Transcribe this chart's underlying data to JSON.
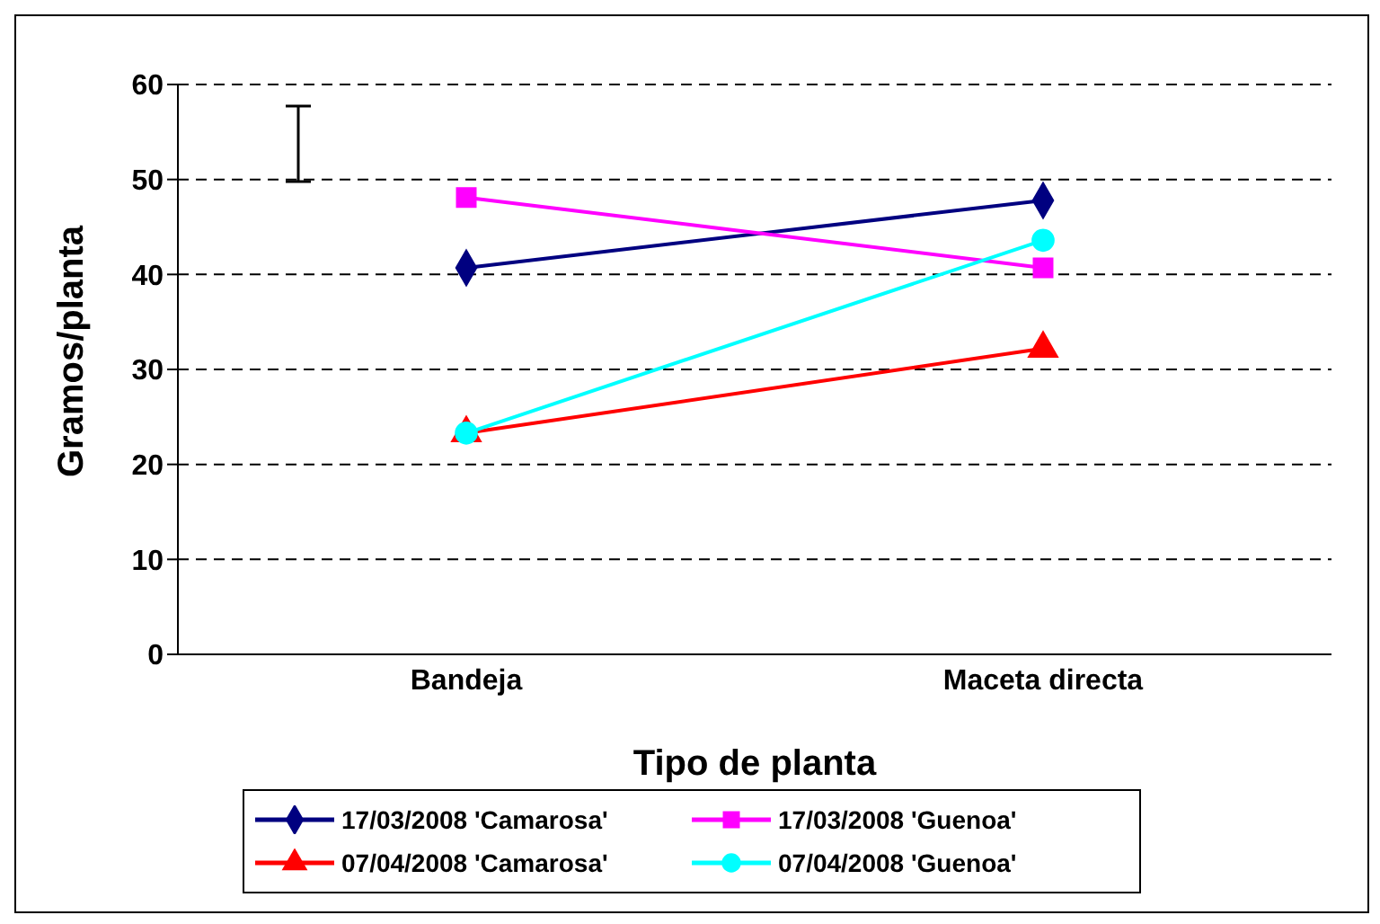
{
  "chart_data": {
    "type": "line",
    "xlabel": "Tipo de planta",
    "ylabel": "Gramos/planta",
    "categories": [
      "Bandeja",
      "Maceta directa"
    ],
    "series": [
      {
        "name": "17/03/2008 'Camarosa'",
        "color": "#000080",
        "marker": "diamond",
        "values": [
          40.7,
          47.8
        ]
      },
      {
        "name": "17/03/2008 'Guenoa'",
        "color": "#ff00ff",
        "marker": "square",
        "values": [
          48.1,
          40.7
        ]
      },
      {
        "name": "07/04/2008 'Camarosa'",
        "color": "#ff0000",
        "marker": "triangle",
        "values": [
          23.3,
          32.2
        ]
      },
      {
        "name": "07/04/2008 'Guenoa'",
        "color": "#00ffff",
        "marker": "circle",
        "values": [
          23.3,
          43.6
        ]
      }
    ],
    "ylim": [
      0,
      60
    ],
    "yticks": [
      0,
      10,
      20,
      30,
      40,
      50,
      60
    ],
    "grid": "y",
    "legend": "bottom"
  }
}
